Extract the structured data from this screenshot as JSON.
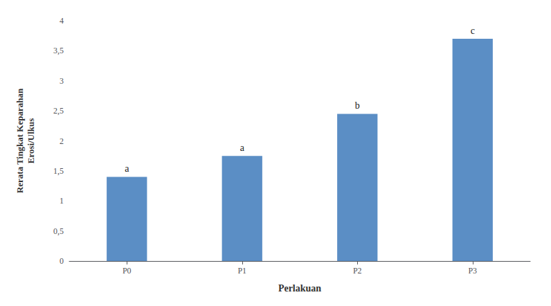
{
  "chart_data": {
    "type": "bar",
    "xlabel": "Perlakuan",
    "ylabel": "Rerata Tingkat Keparahan\nErosi/Ulkus",
    "categories": [
      "P0",
      "P1",
      "P2",
      "P3"
    ],
    "values": [
      1.4,
      1.75,
      2.45,
      3.7
    ],
    "annotations": [
      "a",
      "a",
      "b",
      "c"
    ],
    "color": "#5B8EC5",
    "ylim": [
      0,
      4
    ],
    "yticks": [
      0,
      {
        "value": 0.5,
        "label": "0,5"
      },
      1,
      {
        "value": 1.5,
        "label": "1,5"
      },
      2,
      {
        "value": 2.5,
        "label": "2,5"
      },
      3,
      {
        "value": 3.5,
        "label": "3,5"
      },
      4
    ],
    "grid": false
  }
}
